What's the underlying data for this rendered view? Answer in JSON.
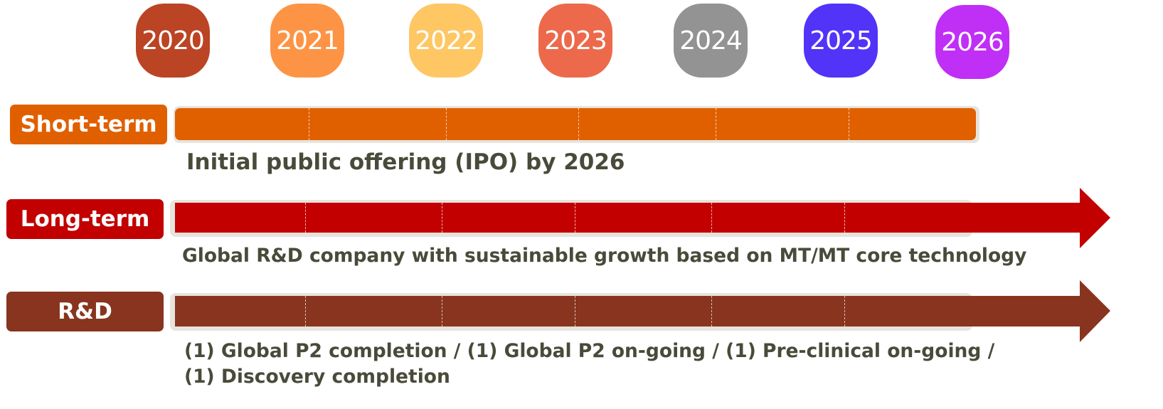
{
  "years": [
    {
      "label": "2020",
      "color": "#bb4424"
    },
    {
      "label": "2021",
      "color": "#fd9445"
    },
    {
      "label": "2022",
      "color": "#fec764"
    },
    {
      "label": "2023",
      "color": "#ec6a4b"
    },
    {
      "label": "2024",
      "color": "#939393"
    },
    {
      "label": "2025",
      "color": "#5233f8"
    },
    {
      "label": "2026",
      "color": "#bf2ff5"
    }
  ],
  "short_term": {
    "label": "Short-term",
    "description": "Initial public offering (IPO) by 2026",
    "color": "#e06000"
  },
  "long_term": {
    "label": "Long-term",
    "description": "Global R&D company with sustainable growth based on MT/MT core technology",
    "color": "#c20000"
  },
  "rnd": {
    "label": "R&D",
    "description_line1": "(1) Global P2 completion / (1) Global P2 on-going / (1) Pre-clinical on-going /",
    "description_line2": "(1) Discovery completion",
    "color": "#88341e"
  }
}
